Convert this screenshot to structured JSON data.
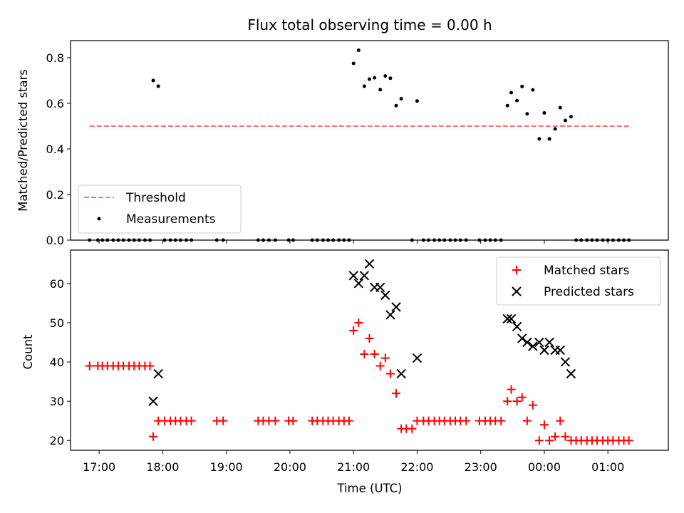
{
  "title": "Flux total observing time = 0.00 h",
  "chart_data": [
    {
      "type": "scatter",
      "ylabel": "Matched/Predicted stars",
      "xlabel": "",
      "xlim": [
        16.55,
        25.95
      ],
      "ylim": [
        0.0,
        0.875
      ],
      "yticks": [
        0.0,
        0.2,
        0.4,
        0.6,
        0.8
      ],
      "ytick_labels": [
        "0.0",
        "0.2",
        "0.4",
        "0.6",
        "0.8"
      ],
      "xticks": [
        17,
        18,
        19,
        20,
        21,
        22,
        23,
        24,
        25
      ],
      "grid": false,
      "legend_placement": "lower-left",
      "series": [
        {
          "name": "Threshold",
          "style": "dashed-line",
          "color": "#ff6f6f",
          "x": [
            16.85,
            25.33
          ],
          "y": [
            0.5,
            0.5
          ]
        },
        {
          "name": "Measurements",
          "style": "dot",
          "color": "#000000",
          "x": [
            16.85,
            16.98,
            17.05,
            17.13,
            17.22,
            17.3,
            17.38,
            17.47,
            17.55,
            17.63,
            17.72,
            17.8,
            17.85,
            17.93,
            18.03,
            18.12,
            18.2,
            18.28,
            18.37,
            18.45,
            18.85,
            18.95,
            19.5,
            19.58,
            19.67,
            19.77,
            19.98,
            20.05,
            20.35,
            20.43,
            20.52,
            20.6,
            20.68,
            20.77,
            20.85,
            20.93,
            21.0,
            21.08,
            21.17,
            21.25,
            21.33,
            21.42,
            21.5,
            21.58,
            21.67,
            21.75,
            21.92,
            22.0,
            22.1,
            22.18,
            22.27,
            22.35,
            22.43,
            22.52,
            22.6,
            22.68,
            22.77,
            22.98,
            23.07,
            23.15,
            23.23,
            23.32,
            23.42,
            23.48,
            23.57,
            23.65,
            23.73,
            23.82,
            23.92,
            24.0,
            24.08,
            24.17,
            24.25,
            24.33,
            24.42,
            24.5,
            24.58,
            24.67,
            24.75,
            24.83,
            24.92,
            25.0,
            25.08,
            25.17,
            25.25,
            25.33
          ],
          "y": [
            0.0,
            0.0,
            0.0,
            0.0,
            0.0,
            0.0,
            0.0,
            0.0,
            0.0,
            0.0,
            0.0,
            0.0,
            0.7,
            0.675,
            0.0,
            0.0,
            0.0,
            0.0,
            0.0,
            0.0,
            0.0,
            0.0,
            0.0,
            0.0,
            0.0,
            0.0,
            0.0,
            0.0,
            0.0,
            0.0,
            0.0,
            0.0,
            0.0,
            0.0,
            0.0,
            0.0,
            0.775,
            0.833,
            0.675,
            0.706,
            0.712,
            0.66,
            0.72,
            0.71,
            0.59,
            0.62,
            0.0,
            0.61,
            0.0,
            0.0,
            0.0,
            0.0,
            0.0,
            0.0,
            0.0,
            0.0,
            0.0,
            0.0,
            0.0,
            0.0,
            0.0,
            0.0,
            0.59,
            0.647,
            0.612,
            0.674,
            0.554,
            0.659,
            0.444,
            0.558,
            0.444,
            0.488,
            0.581,
            0.525,
            0.541,
            0.0,
            0.0,
            0.0,
            0.0,
            0.0,
            0.0,
            0.0,
            0.0,
            0.0,
            0.0,
            0.0
          ]
        }
      ]
    },
    {
      "type": "scatter",
      "ylabel": "Count",
      "xlabel": "Time (UTC)",
      "xlim": [
        16.55,
        25.95
      ],
      "ylim": [
        17.5,
        68.5
      ],
      "yticks": [
        20,
        30,
        40,
        50,
        60
      ],
      "ytick_labels": [
        "20",
        "30",
        "40",
        "50",
        "60"
      ],
      "xticks": [
        17,
        18,
        19,
        20,
        21,
        22,
        23,
        24,
        25
      ],
      "xtick_labels": [
        "17:00",
        "18:00",
        "19:00",
        "20:00",
        "21:00",
        "22:00",
        "23:00",
        "00:00",
        "01:00"
      ],
      "grid": false,
      "legend_placement": "top-right",
      "series": [
        {
          "name": "Matched stars",
          "marker": "plus",
          "color": "#ff0000",
          "x": [
            16.85,
            16.98,
            17.05,
            17.13,
            17.22,
            17.3,
            17.38,
            17.47,
            17.55,
            17.63,
            17.72,
            17.8,
            17.85,
            17.93,
            18.03,
            18.12,
            18.2,
            18.28,
            18.37,
            18.45,
            18.85,
            18.95,
            19.5,
            19.58,
            19.67,
            19.77,
            19.98,
            20.05,
            20.35,
            20.43,
            20.52,
            20.6,
            20.68,
            20.77,
            20.85,
            20.93,
            21.0,
            21.08,
            21.17,
            21.25,
            21.33,
            21.42,
            21.5,
            21.58,
            21.67,
            21.75,
            21.83,
            21.92,
            22.0,
            22.1,
            22.18,
            22.27,
            22.35,
            22.43,
            22.52,
            22.6,
            22.68,
            22.77,
            22.98,
            23.07,
            23.15,
            23.23,
            23.32,
            23.42,
            23.48,
            23.57,
            23.65,
            23.73,
            23.82,
            23.92,
            24.0,
            24.08,
            24.17,
            24.25,
            24.33,
            24.42,
            24.5,
            24.58,
            24.67,
            24.75,
            24.83,
            24.92,
            25.0,
            25.08,
            25.17,
            25.25,
            25.33
          ],
          "y": [
            39,
            39,
            39,
            39,
            39,
            39,
            39,
            39,
            39,
            39,
            39,
            39,
            21,
            25,
            25,
            25,
            25,
            25,
            25,
            25,
            25,
            25,
            25,
            25,
            25,
            25,
            25,
            25,
            25,
            25,
            25,
            25,
            25,
            25,
            25,
            25,
            48,
            50,
            42,
            46,
            42,
            39,
            41,
            37,
            32,
            23,
            23,
            23,
            25,
            25,
            25,
            25,
            25,
            25,
            25,
            25,
            25,
            25,
            25,
            25,
            25,
            25,
            25,
            30,
            33,
            30,
            31,
            25,
            29,
            20,
            24,
            20,
            21,
            25,
            21,
            20,
            20,
            20,
            20,
            20,
            20,
            20,
            20,
            20,
            20,
            20,
            20
          ]
        },
        {
          "name": "Predicted stars",
          "marker": "x",
          "color": "#000000",
          "x": [
            17.85,
            17.93,
            21.0,
            21.08,
            21.17,
            21.25,
            21.33,
            21.42,
            21.5,
            21.58,
            21.67,
            21.75,
            22.0,
            23.42,
            23.48,
            23.57,
            23.65,
            23.73,
            23.82,
            23.92,
            24.0,
            24.08,
            24.17,
            24.25,
            24.33,
            24.42
          ],
          "y": [
            30,
            37,
            62,
            60,
            62,
            65,
            59,
            59,
            57,
            52,
            54,
            37,
            41,
            51,
            51,
            49,
            46,
            45,
            44,
            45,
            43,
            45,
            43,
            43,
            40,
            37
          ]
        }
      ]
    }
  ],
  "colors": {
    "threshold": "#ff6f6f",
    "matched": "#ff0000",
    "predicted": "#000000",
    "measurements": "#000000"
  }
}
